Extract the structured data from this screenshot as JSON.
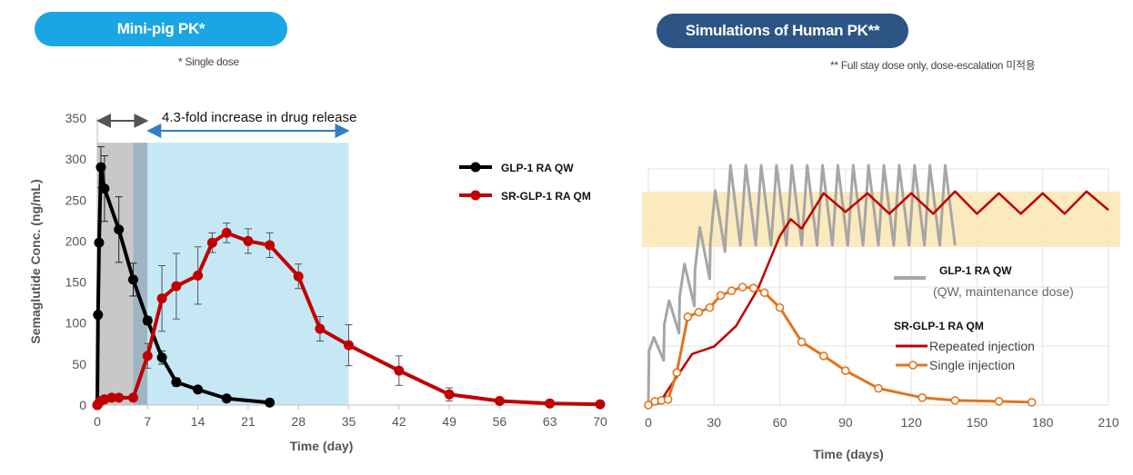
{
  "header": {
    "left_title": "Mini-pig PK*",
    "left_note": "* Single dose",
    "right_title": "Simulations of Human PK**",
    "right_note": "** Full stay dose only, dose-escalation 미적용"
  },
  "colors": {
    "left_pill": "#1aa6e4",
    "right_pill": "#2c5585",
    "glp1": "#000000",
    "sr_glp1": "#c00000",
    "human_glp1": "#a6a6a6",
    "human_single": "#e2741c",
    "gray_band": "#c8c8c8",
    "blue_band": "#c6e8f5",
    "target_band": "#fbe6b4"
  },
  "chart_data": [
    {
      "type": "line",
      "ylabel": "Semaglutide Conc. (ng/mL)",
      "xlabel": "Time (day)",
      "ylim": [
        0,
        350
      ],
      "xlim": [
        0,
        70
      ],
      "yticks": [
        "0",
        "50",
        "100",
        "150",
        "200",
        "250",
        "300",
        "350"
      ],
      "xticks": [
        "0",
        "7",
        "14",
        "21",
        "28",
        "35",
        "42",
        "49",
        "56",
        "63",
        "70"
      ],
      "annotation": "4.3-fold increase in drug release",
      "shaded_regions": [
        {
          "from": 0,
          "to": 5,
          "color": "gray"
        },
        {
          "from": 5,
          "to": 7,
          "color": "slate"
        },
        {
          "from": 7,
          "to": 35,
          "color": "lightblue"
        }
      ],
      "legend_position": "top-right",
      "series": [
        {
          "name": "GLP-1 RA QW",
          "x": [
            0,
            0.1,
            0.25,
            0.5,
            1,
            3,
            5,
            7,
            9,
            11,
            14,
            18,
            24
          ],
          "y": [
            0,
            110,
            198,
            290,
            264,
            214,
            153,
            103,
            58,
            28,
            19,
            8,
            3
          ],
          "err": [
            0,
            0,
            0,
            25,
            40,
            40,
            20,
            5,
            8,
            5,
            3,
            0,
            0
          ]
        },
        {
          "name": "SR-GLP-1 RA QM",
          "x": [
            0,
            0.25,
            0.5,
            1,
            2,
            3,
            5,
            7,
            9,
            11,
            14,
            16,
            18,
            21,
            24,
            28,
            31,
            35,
            42,
            49,
            56,
            63,
            70
          ],
          "y": [
            0,
            3,
            5,
            7,
            9,
            9,
            9,
            60,
            130,
            145,
            158,
            198,
            210,
            200,
            195,
            157,
            93,
            73,
            42,
            13,
            5,
            2,
            1
          ],
          "err": [
            0,
            0,
            0,
            0,
            0,
            0,
            0,
            15,
            40,
            40,
            35,
            12,
            12,
            15,
            15,
            15,
            15,
            25,
            18,
            8,
            0,
            0,
            0
          ]
        }
      ]
    },
    {
      "type": "line",
      "xlabel": "Time (days)",
      "xlim": [
        0,
        210
      ],
      "xticks": [
        "0",
        "30",
        "60",
        "90",
        "120",
        "150",
        "180",
        "210"
      ],
      "target_band": "top",
      "legend_position": "right",
      "legend": {
        "glp1_name": "GLP-1 RA QW",
        "glp1_sub": "(QW, maintenance dose)",
        "sr_name": "SR-GLP-1 RA QM",
        "repeated": "Repeated injection",
        "single": "Single injection"
      },
      "series": [
        {
          "name": "GLP-1 RA QW",
          "pattern": "weekly sawtooth, rises to steady state ~0.85 of band top",
          "x": [
            0,
            7,
            14,
            21,
            28,
            35,
            42,
            49,
            56,
            63,
            70,
            77,
            84,
            91,
            98,
            105,
            112,
            119,
            126,
            133,
            140
          ]
        },
        {
          "name": "Repeated injection",
          "x": [
            0,
            5,
            10,
            20,
            30,
            40,
            50,
            60,
            65,
            70,
            80,
            90,
            100,
            110,
            120,
            130,
            140,
            150,
            160,
            170,
            180,
            190,
            200,
            210
          ],
          "y": [
            0,
            2,
            20,
            55,
            63,
            85,
            125,
            182,
            200,
            190,
            228,
            208,
            228,
            206,
            228,
            206,
            230,
            206,
            228,
            206,
            228,
            206,
            230,
            210
          ]
        },
        {
          "name": "Single injection",
          "x": [
            0,
            3,
            6,
            9,
            13,
            18,
            23,
            28,
            33,
            38,
            43,
            48,
            53,
            60,
            70,
            80,
            90,
            105,
            125,
            140,
            160,
            175
          ],
          "y": [
            0,
            4,
            5,
            6,
            35,
            95,
            100,
            105,
            118,
            123,
            127,
            126,
            121,
            105,
            68,
            53,
            37,
            18,
            8,
            5,
            4,
            3
          ]
        }
      ]
    }
  ]
}
